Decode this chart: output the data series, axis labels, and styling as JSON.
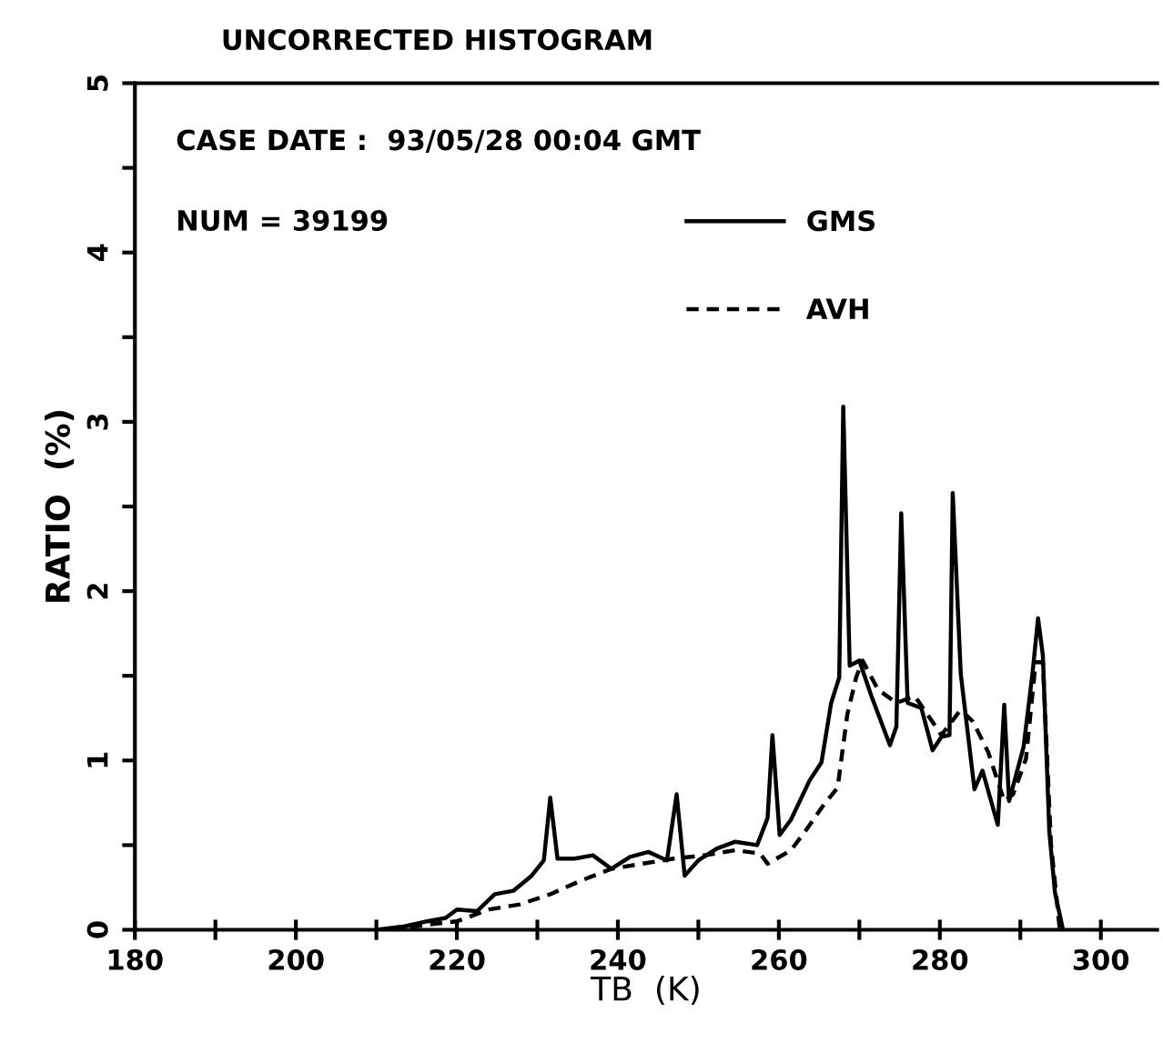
{
  "chart_data": {
    "type": "line",
    "title": "UNCORRECTED HISTOGRAM",
    "xlabel": "TB  (K)",
    "ylabel": "RATIO  (%)",
    "annotations": [
      "CASE DATE :  93/05/28 00:04 GMT",
      "NUM = 39199"
    ],
    "xlim": [
      180,
      307
    ],
    "ylim": [
      0,
      5
    ],
    "xticks": [
      180,
      {
        "value": 190,
        "label": null
      },
      200,
      {
        "value": 210,
        "label": null
      },
      220,
      {
        "value": 230,
        "label": null
      },
      240,
      {
        "value": 250,
        "label": null
      },
      260,
      {
        "value": 270,
        "label": null
      },
      280,
      {
        "value": 290,
        "label": null
      },
      300
    ],
    "yticks": [
      0,
      {
        "value": 0.5,
        "label": null
      },
      1,
      {
        "value": 1.5,
        "label": null
      },
      2,
      {
        "value": 2.5,
        "label": null
      },
      3,
      {
        "value": 3.5,
        "label": null
      },
      4,
      {
        "value": 4.5,
        "label": null
      },
      5
    ],
    "grid": false,
    "legend": "top right",
    "marker": "none",
    "series": [
      {
        "name": "GMS",
        "color": "#000000",
        "line_style": "solid",
        "x": [
          210,
          213.5,
          216.3,
          218.6,
          220,
          222.5,
          224.7,
          227,
          229.3,
          230.8,
          231.6,
          232.5,
          234.6,
          236.9,
          239.2,
          241.5,
          243.8,
          246.1,
          247.3,
          248.3,
          250,
          252.3,
          254.6,
          257.3,
          258.6,
          259.2,
          260.1,
          261.5,
          263.8,
          265.3,
          266.5,
          267.5,
          268,
          268.8,
          270,
          271.5,
          273.8,
          274.6,
          275.2,
          276,
          277.7,
          279.1,
          280.2,
          281.2,
          281.6,
          282.6,
          283.3,
          284.3,
          285.3,
          287.2,
          288,
          288.6,
          290.4,
          291.5,
          292.2,
          292.8,
          293.6,
          294.3,
          295.3
        ],
        "values": [
          0,
          0.02,
          0.05,
          0.07,
          0.12,
          0.11,
          0.21,
          0.23,
          0.32,
          0.41,
          0.78,
          0.42,
          0.42,
          0.44,
          0.36,
          0.43,
          0.46,
          0.41,
          0.8,
          0.32,
          0.41,
          0.48,
          0.52,
          0.5,
          0.66,
          1.15,
          0.56,
          0.65,
          0.88,
          0.99,
          1.34,
          1.49,
          3.09,
          1.56,
          1.59,
          1.38,
          1.09,
          1.2,
          2.46,
          1.34,
          1.31,
          1.06,
          1.14,
          1.15,
          2.58,
          1.51,
          1.23,
          0.83,
          0.94,
          0.62,
          1.33,
          0.76,
          1.08,
          1.51,
          1.84,
          1.62,
          0.58,
          0.22,
          0
        ]
      },
      {
        "name": "AVH",
        "color": "#000000",
        "line_style": "dashed",
        "x": [
          211.7,
          216.3,
          220,
          224,
          227.8,
          231.6,
          235.4,
          239.2,
          243,
          246.9,
          250.8,
          254.6,
          257.7,
          258.6,
          261.5,
          263.4,
          265.3,
          267.3,
          268.5,
          269.6,
          270.4,
          272.3,
          274.6,
          276.9,
          280.2,
          282.6,
          284.1,
          286,
          288,
          289.1,
          290.7,
          291.9,
          292.8,
          293.8,
          294.9
        ],
        "values": [
          0,
          0.03,
          0.05,
          0.12,
          0.15,
          0.21,
          0.29,
          0.36,
          0.39,
          0.42,
          0.44,
          0.47,
          0.45,
          0.39,
          0.47,
          0.59,
          0.72,
          0.84,
          1.27,
          1.49,
          1.59,
          1.42,
          1.34,
          1.38,
          1.15,
          1.3,
          1.23,
          1.05,
          0.76,
          0.8,
          1.01,
          1.58,
          1.58,
          0.51,
          0
        ]
      }
    ]
  }
}
